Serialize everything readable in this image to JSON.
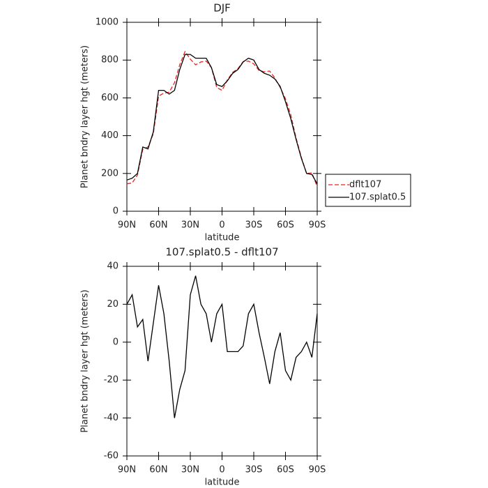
{
  "chart_data": [
    {
      "type": "line",
      "title": "DJF",
      "xlabel": "latitude",
      "ylabel": "Planet bndry layer hgt (meters)",
      "x": [
        90,
        85,
        80,
        75,
        70,
        65,
        60,
        55,
        50,
        45,
        40,
        35,
        30,
        25,
        20,
        15,
        10,
        5,
        0,
        -5,
        -10,
        -15,
        -20,
        -25,
        -30,
        -35,
        -40,
        -45,
        -50,
        -55,
        -60,
        -65,
        -70,
        -75,
        -80,
        -85,
        -90
      ],
      "xlim": [
        90,
        -90
      ],
      "xticks": [
        {
          "value": 90,
          "label": "90N"
        },
        {
          "value": 60,
          "label": "60N"
        },
        {
          "value": 30,
          "label": "30N"
        },
        0,
        {
          "value": -30,
          "label": "30S"
        },
        {
          "value": -60,
          "label": "60S"
        },
        {
          "value": -90,
          "label": "90S"
        }
      ],
      "ylim": [
        0,
        1000
      ],
      "yticks": [
        0,
        200,
        400,
        600,
        800,
        1000
      ],
      "legend": "right",
      "series": [
        {
          "name": "dflt107",
          "color": "#e8211d",
          "dash": true,
          "values": [
            145,
            150,
            192,
            328,
            340,
            410,
            610,
            625,
            630,
            680,
            775,
            845,
            805,
            775,
            790,
            795,
            760,
            655,
            640,
            695,
            735,
            755,
            792,
            795,
            780,
            745,
            738,
            742,
            705,
            655,
            595,
            510,
            388,
            285,
            200,
            203,
            130
          ]
        },
        {
          "name": "107.splat0.5",
          "color": "#000000",
          "dash": false,
          "values": [
            165,
            175,
            200,
            340,
            330,
            420,
            640,
            640,
            620,
            640,
            750,
            830,
            830,
            810,
            810,
            810,
            760,
            670,
            660,
            690,
            730,
            750,
            790,
            810,
            800,
            750,
            730,
            720,
            700,
            660,
            580,
            490,
            380,
            280,
            200,
            195,
            145
          ]
        }
      ]
    },
    {
      "type": "line",
      "title": "107.splat0.5 - dflt107",
      "xlabel": "latitude",
      "ylabel": "Planet bndry layer hgt (meters)",
      "x": [
        90,
        85,
        80,
        75,
        70,
        65,
        60,
        55,
        50,
        45,
        40,
        35,
        30,
        25,
        20,
        15,
        10,
        5,
        0,
        -5,
        -10,
        -15,
        -20,
        -25,
        -30,
        -35,
        -40,
        -45,
        -50,
        -55,
        -60,
        -65,
        -70,
        -75,
        -80,
        -85,
        -90
      ],
      "xlim": [
        90,
        -90
      ],
      "xticks": [
        {
          "value": 90,
          "label": "90N"
        },
        {
          "value": 60,
          "label": "60N"
        },
        {
          "value": 30,
          "label": "30N"
        },
        0,
        {
          "value": -30,
          "label": "30S"
        },
        {
          "value": -60,
          "label": "60S"
        },
        {
          "value": -90,
          "label": "90S"
        }
      ],
      "ylim": [
        -60,
        40
      ],
      "yticks": [
        -60,
        -40,
        -20,
        0,
        20,
        40
      ],
      "series": [
        {
          "color": "#000000",
          "dash": false,
          "values": [
            20,
            25,
            8,
            12,
            -10,
            10,
            30,
            15,
            -10,
            -40,
            -25,
            -15,
            25,
            35,
            20,
            15,
            0,
            15,
            20,
            -5,
            -5,
            -5,
            -2,
            15,
            20,
            5,
            -8,
            -22,
            -5,
            5,
            -15,
            -20,
            -8,
            -5,
            0,
            -8,
            15
          ]
        }
      ]
    }
  ]
}
